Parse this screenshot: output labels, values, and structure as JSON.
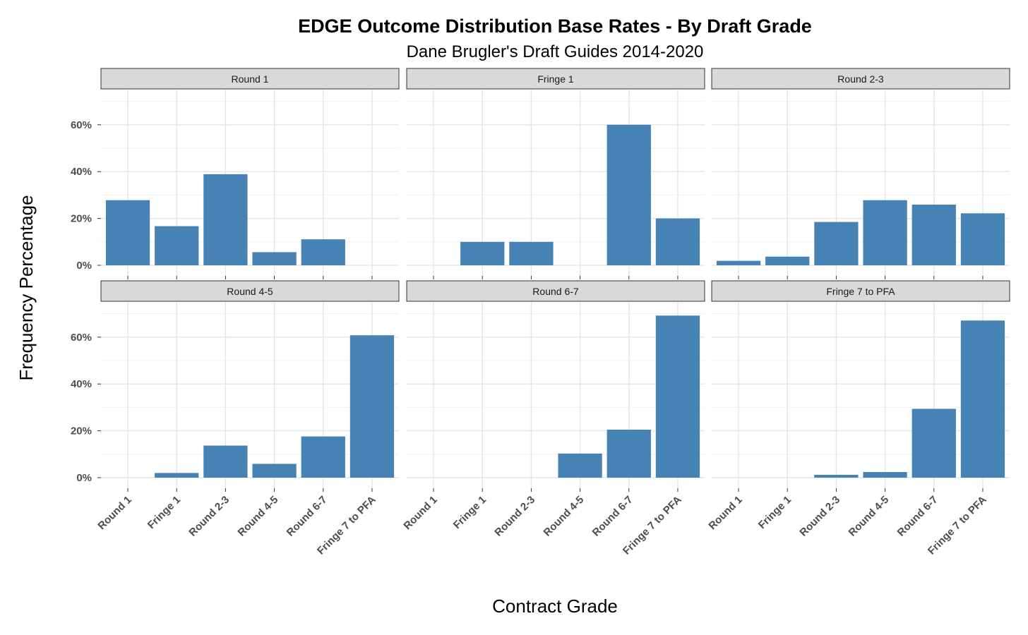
{
  "chart_data": {
    "type": "bar",
    "title": "EDGE Outcome Distribution Base Rates - By Draft Grade",
    "subtitle": "Dane Brugler's Draft Guides 2014-2020",
    "xlabel": "Contract Grade",
    "ylabel": "Frequency Percentage",
    "ylim": [
      0,
      72
    ],
    "yticks": [
      0,
      20,
      40,
      60
    ],
    "ytick_labels": [
      "0%",
      "20%",
      "40%",
      "60%"
    ],
    "grid": true,
    "bar_color": "#4682B4",
    "categories": [
      "Round 1",
      "Fringe 1",
      "Round 2-3",
      "Round 4-5",
      "Round 6-7",
      "Fringe 7 to PFA"
    ],
    "panels": [
      {
        "name": "Round 1",
        "values": [
          27.8,
          16.7,
          38.9,
          5.6,
          11.1,
          0
        ]
      },
      {
        "name": "Fringe 1",
        "values": [
          0,
          10,
          10,
          0,
          60,
          20
        ]
      },
      {
        "name": "Round 2-3",
        "values": [
          1.9,
          3.7,
          18.5,
          27.8,
          25.9,
          22.2
        ]
      },
      {
        "name": "Round 4-5",
        "values": [
          0,
          2.0,
          13.7,
          5.9,
          17.6,
          60.8
        ]
      },
      {
        "name": "Round 6-7",
        "values": [
          0,
          0,
          0,
          10.3,
          20.5,
          69.2
        ]
      },
      {
        "name": "Fringe 7 to PFA",
        "values": [
          0,
          0,
          1.2,
          2.4,
          29.4,
          67.1
        ]
      }
    ]
  }
}
